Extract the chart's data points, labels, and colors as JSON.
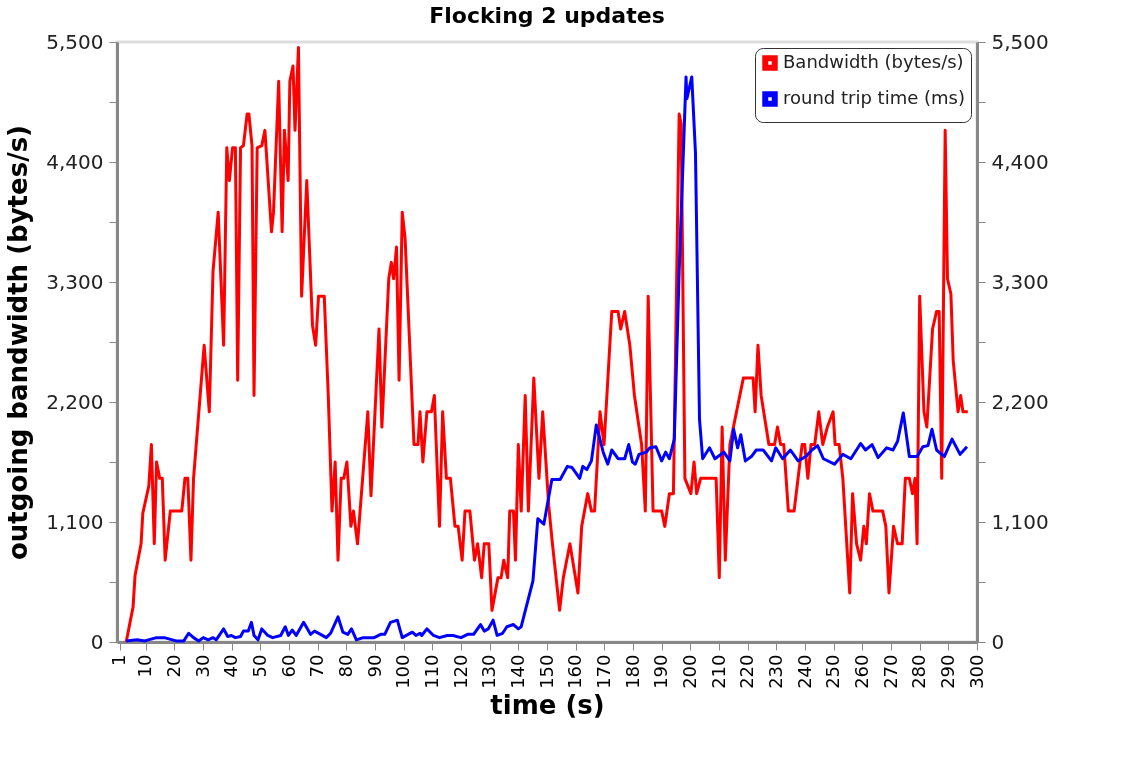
{
  "chart_data": {
    "type": "line",
    "title": "Flocking 2 updates",
    "xlabel": "time (s)",
    "ylabel": "outgoing bandwidth (bytes/s)",
    "xlim": [
      0,
      300
    ],
    "xticks": [
      1,
      10,
      20,
      30,
      40,
      50,
      60,
      70,
      80,
      90,
      100,
      110,
      120,
      130,
      140,
      150,
      160,
      170,
      180,
      190,
      200,
      210,
      220,
      230,
      240,
      250,
      260,
      270,
      280,
      290,
      300
    ],
    "ylim": [
      0,
      5500
    ],
    "yticks": [
      0,
      {
        "value": 550,
        "label": null
      },
      {
        "value": 1100,
        "label": "1,100"
      },
      {
        "value": 1650,
        "label": null
      },
      {
        "value": 2200,
        "label": "2,200"
      },
      {
        "value": 2750,
        "label": null
      },
      {
        "value": 3300,
        "label": "3,300"
      },
      {
        "value": 3850,
        "label": null
      },
      {
        "value": 4400,
        "label": "4,400"
      },
      {
        "value": 4950,
        "label": null
      },
      {
        "value": 5500,
        "label": "5,500"
      }
    ],
    "y2lim": [
      0,
      5500
    ],
    "y2ticks": [
      0,
      {
        "value": 550,
        "label": null
      },
      {
        "value": 1100,
        "label": "1,100"
      },
      {
        "value": 1650,
        "label": null
      },
      {
        "value": 2200,
        "label": "2,200"
      },
      {
        "value": 2750,
        "label": null
      },
      {
        "value": 3300,
        "label": "3,300"
      },
      {
        "value": 3850,
        "label": null
      },
      {
        "value": 4400,
        "label": "4,400"
      },
      {
        "value": 4950,
        "label": null
      },
      {
        "value": 5500,
        "label": "5,500"
      }
    ],
    "grid": false,
    "legend": "top right",
    "marker": "none",
    "line_style": "solid",
    "series": [
      {
        "name": "Bandwidth (bytes/s)",
        "color": "#ff0000",
        "axis": "y",
        "x": [
          3.2,
          5.6,
          6.3,
          8.4,
          9.0,
          11.1,
          12.0,
          13.0,
          13.8,
          14.9,
          15.8,
          16.8,
          18.6,
          22.6,
          23.7,
          24.7,
          25.8,
          26.7,
          30.4,
          32.2,
          33.5,
          35.3,
          37.2,
          38.3,
          39.2,
          40.3,
          41.3,
          42.1,
          43.1,
          44.1,
          45.4,
          46.0,
          47.1,
          47.8,
          48.9,
          50.5,
          51.6,
          53.9,
          54.6,
          56.4,
          57.6,
          58.4,
          59.7,
          60.3,
          61.4,
          62.1,
          63.3,
          64.4,
          66.2,
          68.2,
          69.3,
          70.3,
          72.3,
          73.7,
          75.0,
          76.1,
          77.1,
          78.2,
          79.1,
          80.2,
          81.6,
          82.5,
          83.9,
          87.5,
          88.6,
          91.4,
          92.4,
          94.8,
          95.7,
          96.5,
          97.5,
          98.4,
          99.5,
          100.5,
          103.6,
          105.0,
          105.7,
          106.7,
          108.1,
          109.7,
          110.7,
          112.5,
          113.6,
          114.9,
          116.3,
          117.9,
          119.0,
          120.4,
          121.4,
          123.1,
          124.7,
          125.8,
          127.2,
          128.1,
          129.7,
          130.8,
          132.9,
          134.0,
          134.9,
          136.3,
          137.0,
          138.3,
          139.0,
          140.0,
          141.0,
          142.4,
          143.5,
          145.4,
          147.2,
          148.5,
          150.6,
          151.9,
          154.4,
          155.7,
          158.0,
          160.8,
          162.1,
          164.2,
          165.5,
          166.6,
          168.5,
          169.9,
          172.6,
          174.8,
          175.7,
          177.1,
          178.9,
          180.5,
          183.0,
          184.3,
          185.3,
          187.0,
          190.0,
          191.1,
          192.7,
          194.1,
          196.1,
          196.8,
          198.1,
          200.2,
          201.3,
          202.2,
          203.6,
          209.0,
          210.1,
          211.1,
          212.2,
          213.8,
          218.5,
          221.9,
          222.6,
          223.6,
          224.7,
          227.4,
          229.4,
          230.4,
          231.5,
          232.6,
          234.2,
          236.2,
          239.0,
          239.9,
          241.0,
          242.1,
          243.4,
          244.8,
          246.2,
          247.8,
          249.8,
          250.5,
          251.9,
          253.2,
          255.6,
          256.6,
          258.0,
          259.4,
          260.5,
          261.4,
          262.5,
          263.7,
          267.1,
          268.2,
          269.3,
          270.9,
          272.3,
          273.9,
          275.0,
          276.4,
          277.5,
          278.4,
          279.1,
          280.0,
          281.5,
          282.5,
          284.5,
          285.9,
          286.8,
          287.7,
          288.9,
          289.7,
          290.9,
          291.7,
          293.4,
          294.3,
          295.1,
          296.8
        ],
        "values": [
          0,
          320,
          610,
          900,
          1180,
          1430,
          1810,
          900,
          1650,
          1500,
          1500,
          750,
          1200,
          1200,
          1500,
          1500,
          750,
          1500,
          2720,
          2110,
          3400,
          3940,
          2720,
          4530,
          4230,
          4530,
          4530,
          2400,
          4530,
          4550,
          4840,
          4840,
          4550,
          2260,
          4530,
          4550,
          4690,
          3760,
          3940,
          5140,
          3760,
          4690,
          4230,
          5140,
          5280,
          4690,
          5450,
          3170,
          4230,
          2900,
          2720,
          3170,
          3170,
          2260,
          1200,
          1650,
          750,
          1500,
          1500,
          1650,
          1060,
          1200,
          900,
          2110,
          1340,
          2870,
          1970,
          3330,
          3480,
          3330,
          3620,
          2400,
          3940,
          3700,
          1810,
          1810,
          2110,
          1650,
          2110,
          2110,
          2260,
          1060,
          2110,
          1500,
          1500,
          1060,
          1060,
          750,
          1200,
          1200,
          750,
          900,
          590,
          900,
          900,
          290,
          590,
          590,
          750,
          590,
          1200,
          1200,
          750,
          1810,
          1200,
          2260,
          1200,
          2420,
          1500,
          2110,
          1250,
          900,
          290,
          590,
          900,
          450,
          1060,
          1360,
          1200,
          1200,
          2110,
          1810,
          3030,
          3030,
          2870,
          3030,
          2720,
          2260,
          1810,
          1200,
          3170,
          1200,
          1200,
          1060,
          1360,
          1360,
          4840,
          4750,
          1500,
          1360,
          1650,
          1360,
          1500,
          1500,
          590,
          1970,
          750,
          1810,
          2420,
          2420,
          2110,
          2720,
          2260,
          1810,
          1810,
          1970,
          1810,
          1810,
          1200,
          1200,
          1810,
          1810,
          1500,
          1810,
          1810,
          2110,
          1810,
          1970,
          2110,
          1810,
          1810,
          1500,
          450,
          1360,
          900,
          750,
          1060,
          900,
          1360,
          1200,
          1200,
          1060,
          450,
          1060,
          900,
          900,
          1500,
          1500,
          1360,
          1500,
          900,
          3170,
          2110,
          1970,
          2870,
          3030,
          3030,
          1500,
          4690,
          3330,
          3190,
          2580,
          2110,
          2260,
          2110,
          2110
        ]
      },
      {
        "name": "round trip time (ms)",
        "color": "#0000ff",
        "axis": "y2",
        "x": [
          3.2,
          7.0,
          9.7,
          13.8,
          16.5,
          20.6,
          23.3,
          25.0,
          26.7,
          28.5,
          30.1,
          31.8,
          33.5,
          34.6,
          37.2,
          38.6,
          39.9,
          41.3,
          43.1,
          44.1,
          45.8,
          46.9,
          47.8,
          49.2,
          50.5,
          52.6,
          54.3,
          57.1,
          58.7,
          59.8,
          61.1,
          62.5,
          65.1,
          67.5,
          68.9,
          71.0,
          73.0,
          74.5,
          77.1,
          78.8,
          80.5,
          81.8,
          83.5,
          85.9,
          88.0,
          89.7,
          92.0,
          93.4,
          95.4,
          97.8,
          99.5,
          103.0,
          104.3,
          105.7,
          106.3,
          108.1,
          110.4,
          112.5,
          115.2,
          117.2,
          120.0,
          122.3,
          124.4,
          126.8,
          128.1,
          129.5,
          131.2,
          132.6,
          134.5,
          136.0,
          138.3,
          140.0,
          141.0,
          145.1,
          146.8,
          148.9,
          151.7,
          154.6,
          157.1,
          158.7,
          161.4,
          162.5,
          163.9,
          165.5,
          167.2,
          169.6,
          171.2,
          172.6,
          174.8,
          177.1,
          178.5,
          179.8,
          180.8,
          182.1,
          184.6,
          185.9,
          188.0,
          190.0,
          191.4,
          192.7,
          194.4,
          196.1,
          198.5,
          198.8,
          200.5,
          201.8,
          203.2,
          204.3,
          206.7,
          208.6,
          211.7,
          213.8,
          215.1,
          216.5,
          217.6,
          219.2,
          221.3,
          223.0,
          225.4,
          228.3,
          229.8,
          232.2,
          234.9,
          237.6,
          240.3,
          242.4,
          244.4,
          246.4,
          250.3,
          253.2,
          256.0,
          259.4,
          261.1,
          263.4,
          265.5,
          268.5,
          270.7,
          272.3,
          274.3,
          276.4,
          279.1,
          281.1,
          282.9,
          284.3,
          285.9,
          288.6,
          291.3,
          294.1,
          296.5
        ],
        "values": [
          10,
          20,
          10,
          40,
          40,
          10,
          10,
          80,
          40,
          10,
          40,
          20,
          40,
          20,
          120,
          50,
          60,
          40,
          50,
          100,
          100,
          180,
          60,
          20,
          120,
          60,
          40,
          60,
          140,
          60,
          110,
          60,
          180,
          70,
          100,
          70,
          40,
          80,
          230,
          90,
          70,
          120,
          20,
          40,
          40,
          40,
          70,
          70,
          180,
          200,
          40,
          90,
          60,
          80,
          60,
          120,
          60,
          40,
          60,
          60,
          40,
          70,
          70,
          160,
          100,
          120,
          200,
          60,
          80,
          140,
          160,
          120,
          140,
          560,
          1130,
          1080,
          1490,
          1490,
          1610,
          1600,
          1500,
          1610,
          1580,
          1660,
          1990,
          1740,
          1630,
          1760,
          1680,
          1680,
          1810,
          1650,
          1630,
          1720,
          1740,
          1780,
          1790,
          1660,
          1740,
          1680,
          1860,
          3400,
          5180,
          4980,
          5180,
          4480,
          2040,
          1680,
          1780,
          1680,
          1740,
          1660,
          1950,
          1780,
          1900,
          1660,
          1700,
          1760,
          1760,
          1660,
          1780,
          1680,
          1760,
          1660,
          1700,
          1760,
          1800,
          1680,
          1630,
          1720,
          1680,
          1820,
          1760,
          1810,
          1690,
          1780,
          1760,
          1840,
          2100,
          1700,
          1700,
          1790,
          1800,
          1950,
          1760,
          1700,
          1860,
          1720,
          1790
        ]
      }
    ]
  }
}
